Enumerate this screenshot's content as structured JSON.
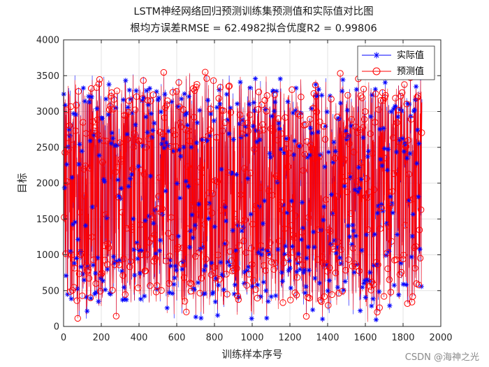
{
  "chart_data": {
    "type": "line",
    "title": "LSTM神经网络回归预测训练集预测值和实际值对比图",
    "subtitle": "根均方误差RMSE = 62.4982拟合优度R2 = 0.99806",
    "xlabel": "训练样本序号",
    "ylabel": "目标",
    "xlim": [
      0,
      2000
    ],
    "ylim": [
      0,
      4000
    ],
    "x_ticks": [
      0,
      200,
      400,
      600,
      800,
      1000,
      1200,
      1400,
      1600,
      1800,
      2000
    ],
    "y_ticks": [
      0,
      500,
      1000,
      1500,
      2000,
      2500,
      3000,
      3500,
      4000
    ],
    "grid": true,
    "legend_position": "top-right",
    "n_samples": 1900,
    "value_range": [
      80,
      3520
    ],
    "series": [
      {
        "name": "实际值",
        "color": "#0000ff",
        "marker": "asterisk"
      },
      {
        "name": "预测值",
        "color": "#ff0000",
        "marker": "circle"
      }
    ]
  },
  "watermark": "CSDN @海神之光"
}
